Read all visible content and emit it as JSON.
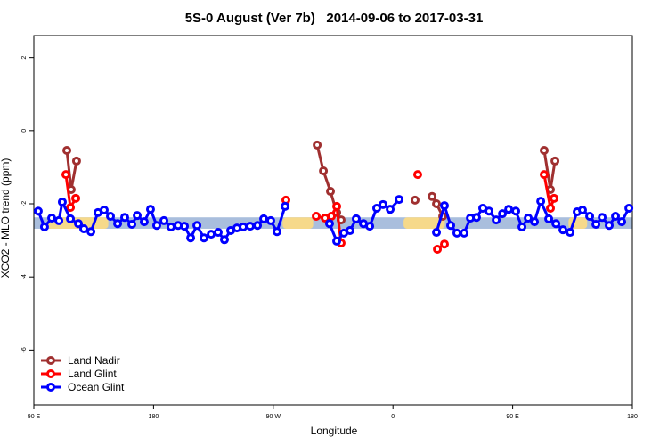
{
  "chart_data": {
    "type": "line",
    "title": "5S-0 August (Ver 7b)   2014-09-06 to 2017-03-31",
    "x_label": "Longitude",
    "y_label": "XCO2 - MLO trend (ppm)",
    "xlim": [
      90,
      540
    ],
    "ylim": [
      -7.5,
      2.6
    ],
    "xticks": [
      {
        "value": 90,
        "label": "90 E"
      },
      {
        "value": 180,
        "label": "180"
      },
      {
        "value": 270,
        "label": "90 W"
      },
      {
        "value": 360,
        "label": "0"
      },
      {
        "value": 450,
        "label": "90 E"
      },
      {
        "value": 540,
        "label": "180"
      }
    ],
    "yticks": [
      2,
      0,
      -2,
      -4,
      -6
    ],
    "legend": "bottom-left",
    "band": {
      "range": [
        -2.68,
        -2.37
      ],
      "color": "#a9bedd",
      "highlight_color": "#f6d98a",
      "highlights": [
        [
          100,
          146
        ],
        [
          277,
          300
        ],
        [
          368,
          399
        ],
        [
          492,
          506
        ]
      ]
    },
    "series": [
      {
        "name": "Land Nadir",
        "color": "#a03030",
        "x": [
          114.8,
          118.1,
          122.1,
          null,
          303.0,
          307.7,
          313.0,
          317.7,
          321.0,
          null,
          376.6,
          null,
          389.4,
          392.7,
          397.4,
          null,
          473.7,
          478.4,
          481.8
        ],
        "values": [
          -0.54,
          -1.61,
          -0.83,
          null,
          -0.39,
          -1.1,
          -1.66,
          -2.24,
          -2.44,
          null,
          -1.9,
          null,
          -1.8,
          -2.0,
          -2.34,
          null,
          -0.54,
          -1.61,
          -0.83
        ]
      },
      {
        "name": "Land Glint",
        "color": "#ff0000",
        "x": [
          114.1,
          117.5,
          121.5,
          null,
          279.5,
          null,
          302.3,
          309.0,
          313.7,
          317.7,
          321.0,
          null,
          378.6,
          null,
          393.4,
          398.7,
          null,
          473.7,
          478.4,
          481.1
        ],
        "values": [
          -1.2,
          -2.1,
          -1.85,
          null,
          -1.9,
          null,
          -2.34,
          -2.39,
          -2.34,
          -2.07,
          -3.07,
          null,
          -1.2,
          null,
          -3.24,
          -3.1,
          null,
          -1.2,
          -2.12,
          -1.85
        ]
      },
      {
        "name": "Ocean Glint",
        "color": "#0000ff",
        "x": [
          93.3,
          98.0,
          103.4,
          108.8,
          111.4,
          117.5,
          123.5,
          127.5,
          132.9,
          138.2,
          142.9,
          147.6,
          153.0,
          158.3,
          163.7,
          167.7,
          173.0,
          177.7,
          182.4,
          187.8,
          193.1,
          198.5,
          203.2,
          207.9,
          212.6,
          217.9,
          223.3,
          228.6,
          233.3,
          238.0,
          242.7,
          247.4,
          252.7,
          258.1,
          262.8,
          268.1,
          272.8,
          278.9,
          null,
          312.3,
          317.7,
          323.0,
          327.7,
          332.4,
          337.8,
          342.5,
          347.8,
          352.5,
          357.9,
          364.6,
          null,
          392.7,
          398.7,
          403.4,
          408.1,
          413.5,
          418.2,
          422.8,
          427.5,
          432.2,
          437.6,
          442.3,
          447.0,
          452.3,
          457.0,
          461.7,
          466.4,
          471.1,
          477.1,
          482.5,
          487.8,
          493.2,
          498.5,
          502.5,
          507.9,
          512.6,
          517.3,
          522.6,
          527.3,
          532.0,
          537.4
        ],
        "values": [
          -2.2,
          -2.63,
          -2.39,
          -2.46,
          -1.95,
          -2.41,
          -2.54,
          -2.68,
          -2.76,
          -2.24,
          -2.17,
          -2.34,
          -2.54,
          -2.37,
          -2.56,
          -2.32,
          -2.49,
          -2.15,
          -2.59,
          -2.46,
          -2.63,
          -2.59,
          -2.61,
          -2.93,
          -2.59,
          -2.93,
          -2.83,
          -2.78,
          -2.98,
          -2.73,
          -2.66,
          -2.63,
          -2.61,
          -2.59,
          -2.41,
          -2.46,
          -2.76,
          -2.07,
          null,
          -2.54,
          -3.02,
          -2.8,
          -2.73,
          -2.41,
          -2.54,
          -2.61,
          -2.12,
          -2.02,
          -2.15,
          -1.88,
          null,
          -2.78,
          -2.05,
          -2.59,
          -2.8,
          -2.8,
          -2.39,
          -2.37,
          -2.12,
          -2.2,
          -2.44,
          -2.27,
          -2.15,
          -2.2,
          -2.63,
          -2.39,
          -2.49,
          -1.93,
          -2.41,
          -2.54,
          -2.71,
          -2.78,
          -2.22,
          -2.17,
          -2.34,
          -2.56,
          -2.37,
          -2.59,
          -2.34,
          -2.49,
          -2.12
        ]
      }
    ]
  }
}
